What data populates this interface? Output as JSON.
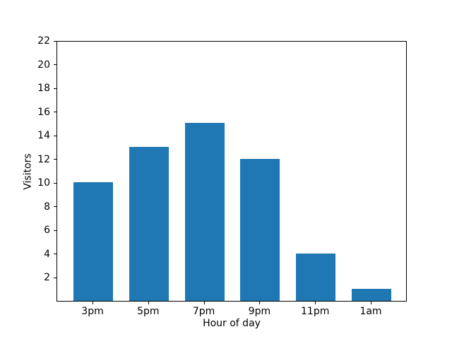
{
  "chart_data": {
    "type": "bar",
    "title": "",
    "categories": [
      "3pm",
      "5pm",
      "7pm",
      "9pm",
      "11pm",
      "1am"
    ],
    "values": [
      10,
      13,
      15,
      12,
      4,
      1
    ],
    "xlabel": "Hour of day",
    "ylabel": "Visitors",
    "ylim": [
      0,
      22
    ],
    "yticks": [
      2,
      4,
      6,
      8,
      10,
      12,
      14,
      16,
      18,
      20,
      22
    ],
    "bar_color": "#1f77b4",
    "grid": false,
    "legend_position": "none"
  }
}
